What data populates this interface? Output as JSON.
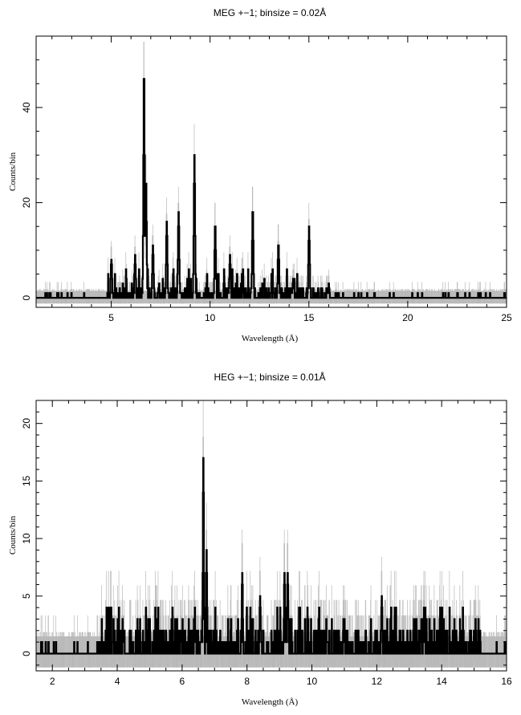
{
  "chart_data": [
    {
      "type": "line",
      "title": "MEG +−1; binsize = 0.02Å",
      "xlabel": "Wavelength (Å)",
      "ylabel": "Counts/bin",
      "xlim": [
        1.2,
        25
      ],
      "ylim": [
        -2,
        55
      ],
      "xticks": [
        5,
        10,
        15,
        20,
        25
      ],
      "yticks": [
        0,
        20,
        40
      ],
      "grid": false,
      "background_band": [
        -1.2,
        1.5
      ],
      "peaks": [
        {
          "x": 5.0,
          "y": 8
        },
        {
          "x": 6.2,
          "y": 9
        },
        {
          "x": 6.65,
          "y": 48
        },
        {
          "x": 6.75,
          "y": 25
        },
        {
          "x": 7.1,
          "y": 11
        },
        {
          "x": 7.8,
          "y": 16
        },
        {
          "x": 8.4,
          "y": 18
        },
        {
          "x": 9.2,
          "y": 30
        },
        {
          "x": 10.25,
          "y": 16
        },
        {
          "x": 11.0,
          "y": 9
        },
        {
          "x": 12.15,
          "y": 19
        },
        {
          "x": 13.45,
          "y": 12
        },
        {
          "x": 14.2,
          "y": 4
        },
        {
          "x": 15.0,
          "y": 15
        },
        {
          "x": 16.0,
          "y": 3
        }
      ],
      "line_range": [
        4.8,
        16.0
      ],
      "sparse_range": [
        1.2,
        25
      ]
    },
    {
      "type": "line",
      "title": "HEG +−1; binsize = 0.01Å",
      "xlabel": "Wavelength (Å)",
      "ylabel": "Counts/bin",
      "xlim": [
        1.5,
        16
      ],
      "ylim": [
        -1.5,
        22
      ],
      "xticks": [
        2,
        4,
        6,
        8,
        10,
        12,
        14,
        16
      ],
      "yticks": [
        0,
        5,
        10,
        15,
        20
      ],
      "grid": false,
      "background_band": [
        -1.2,
        1.5
      ],
      "peaks": [
        {
          "x": 5.0,
          "y": 3
        },
        {
          "x": 6.2,
          "y": 3
        },
        {
          "x": 6.65,
          "y": 17
        },
        {
          "x": 6.75,
          "y": 9
        },
        {
          "x": 7.5,
          "y": 3
        },
        {
          "x": 7.85,
          "y": 7
        },
        {
          "x": 8.4,
          "y": 5
        },
        {
          "x": 9.15,
          "y": 7
        },
        {
          "x": 9.25,
          "y": 7
        },
        {
          "x": 10.2,
          "y": 3
        },
        {
          "x": 11.0,
          "y": 3
        },
        {
          "x": 12.15,
          "y": 5
        },
        {
          "x": 13.45,
          "y": 4
        },
        {
          "x": 15.0,
          "y": 2
        }
      ],
      "line_range": [
        3.5,
        15.2
      ],
      "sparse_range": [
        2.3,
        16
      ]
    }
  ]
}
